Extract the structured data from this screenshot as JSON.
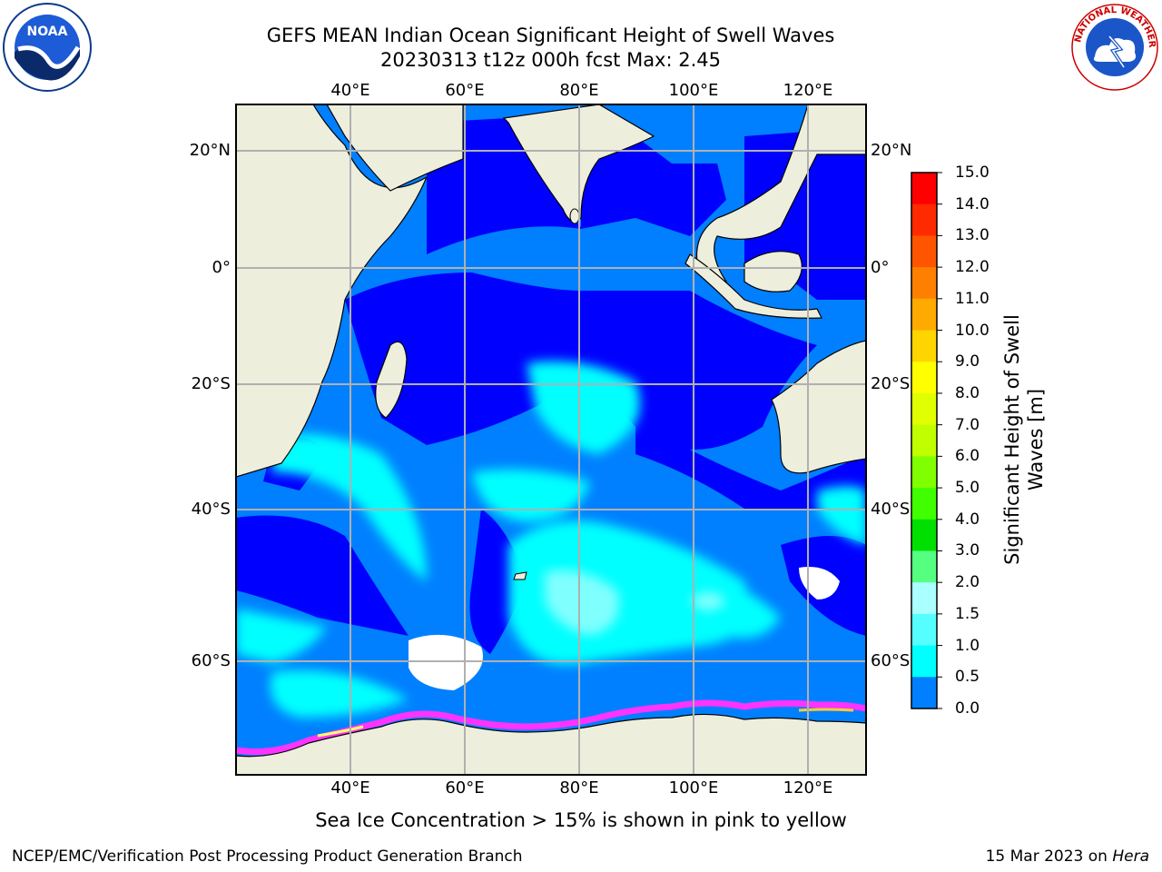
{
  "title_line1": "GEFS MEAN Indian Ocean Significant Height of Swell Waves",
  "title_line2": "20230313 t12z 000h fcst   Max: 2.45",
  "map": {
    "lon_ticks": [
      "40°E",
      "60°E",
      "80°E",
      "100°E",
      "120°E"
    ],
    "lat_ticks": [
      "20°N",
      "0°",
      "20°S",
      "40°S",
      "60°S"
    ],
    "colors": {
      "ocean_low": "#0000ff",
      "ocean_mid": "#0080ff",
      "ocean_high": "#00ffff",
      "ocean_peak": "#80ffff",
      "land": "#eeeedd",
      "ice_edge": "#ff33ff",
      "grid": "#b0b0b0"
    }
  },
  "colorbar": {
    "label": "Significant Height of Swell Waves [m]",
    "ticks": [
      "15.0",
      "14.0",
      "13.0",
      "12.0",
      "11.0",
      "10.0",
      "9.0",
      "8.0",
      "7.0",
      "6.0",
      "5.0",
      "4.0",
      "3.0",
      "2.0",
      "1.5",
      "1.0",
      "0.5",
      "0.0"
    ],
    "colors": [
      "#ff0000",
      "#ff2a00",
      "#ff5500",
      "#ff8000",
      "#ffaa00",
      "#ffd500",
      "#ffff00",
      "#e0ff00",
      "#c0ff00",
      "#80ff00",
      "#40ff00",
      "#00e000",
      "#55ff80",
      "#aaffff",
      "#55ffff",
      "#00ffff",
      "#0080ff",
      "#0000ff"
    ]
  },
  "note": "Sea Ice Concentration > 15% is shown in pink to yellow",
  "footer": {
    "left": "NCEP/EMC/Verification Post Processing Product Generation Branch",
    "date": "15 Mar 2023 on",
    "machine": "Hera"
  },
  "logos": {
    "noaa_text": "NOAA",
    "nws_text": "NATIONAL WEATHER SERVICE"
  }
}
